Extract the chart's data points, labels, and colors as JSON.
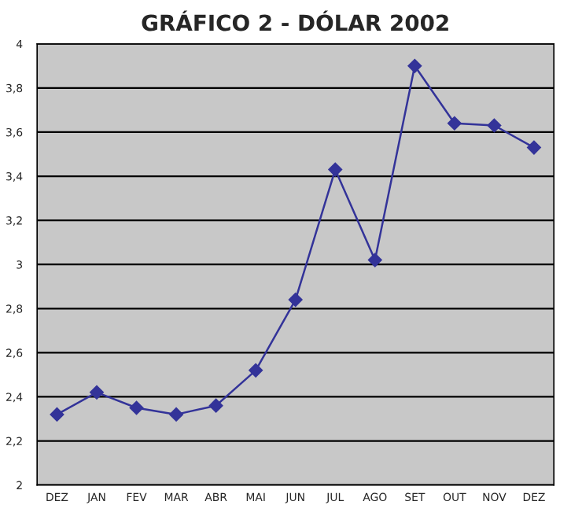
{
  "chart_data": {
    "type": "line",
    "title": "GRÁFICO 2 - DÓLAR 2002",
    "categories": [
      "DEZ",
      "JAN",
      "FEV",
      "MAR",
      "ABR",
      "MAI",
      "JUN",
      "JUL",
      "AGO",
      "SET",
      "OUT",
      "NOV",
      "DEZ"
    ],
    "series": [
      {
        "color": "#333399",
        "values": [
          2.32,
          2.42,
          2.35,
          2.32,
          2.36,
          2.52,
          2.84,
          3.43,
          3.02,
          3.9,
          3.64,
          3.63,
          3.53
        ]
      }
    ],
    "ylim": [
      2,
      4
    ],
    "yticks": [
      {
        "value": 2,
        "label": "2"
      },
      {
        "value": 2.2,
        "label": "2,2"
      },
      {
        "value": 2.4,
        "label": "2,4"
      },
      {
        "value": 2.6,
        "label": "2,6"
      },
      {
        "value": 2.8,
        "label": "2,8"
      },
      {
        "value": 3,
        "label": "3"
      },
      {
        "value": 3.2,
        "label": "3,2"
      },
      {
        "value": 3.4,
        "label": "3,4"
      },
      {
        "value": 3.6,
        "label": "3,6"
      },
      {
        "value": 3.8,
        "label": "3,8"
      },
      {
        "value": 4,
        "label": "4"
      }
    ],
    "grid": "y",
    "marker": "diamond",
    "line_style": "solid"
  }
}
